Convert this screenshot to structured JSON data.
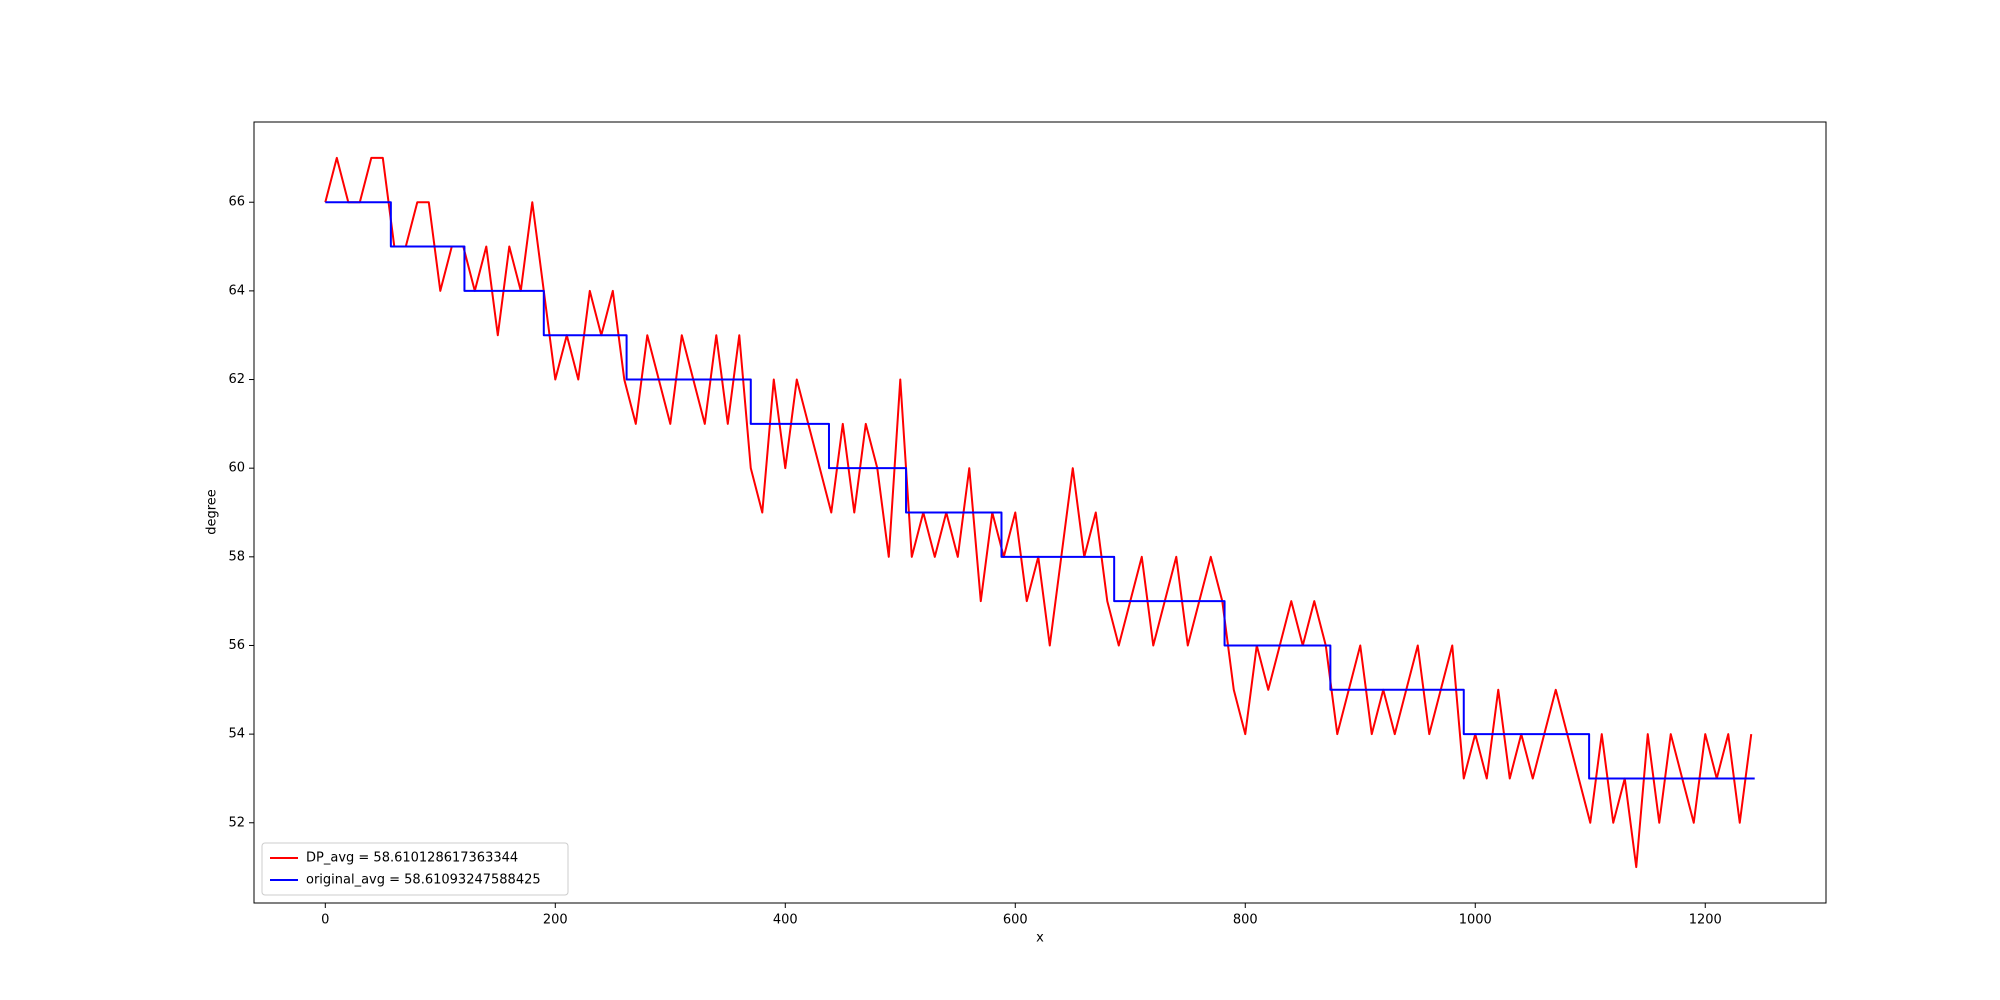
{
  "chart_data": {
    "type": "line",
    "xlabel": "x",
    "ylabel": "degree",
    "xlim": [
      -62,
      1305
    ],
    "ylim": [
      50.19,
      67.81
    ],
    "xticks": [
      0,
      200,
      400,
      600,
      800,
      1000,
      1200
    ],
    "yticks": [
      52,
      54,
      56,
      58,
      60,
      62,
      64,
      66
    ],
    "grid": false,
    "legend": "lower left",
    "series": [
      {
        "name": "DP_avg = 58.610128617363344",
        "color": "#ff0000",
        "x": [
          0,
          10,
          20,
          30,
          40,
          50,
          60,
          70,
          80,
          90,
          100,
          110,
          120,
          130,
          140,
          150,
          160,
          170,
          180,
          190,
          200,
          210,
          220,
          230,
          240,
          250,
          260,
          270,
          280,
          290,
          300,
          310,
          320,
          330,
          340,
          350,
          360,
          370,
          380,
          390,
          400,
          410,
          420,
          430,
          440,
          450,
          460,
          470,
          480,
          490,
          500,
          510,
          520,
          530,
          540,
          550,
          560,
          570,
          580,
          590,
          600,
          610,
          620,
          630,
          640,
          650,
          660,
          670,
          680,
          690,
          700,
          710,
          720,
          730,
          740,
          750,
          760,
          770,
          780,
          790,
          800,
          810,
          820,
          830,
          840,
          850,
          860,
          870,
          880,
          890,
          900,
          910,
          920,
          930,
          940,
          950,
          960,
          970,
          980,
          990,
          1000,
          1010,
          1020,
          1030,
          1040,
          1050,
          1060,
          1070,
          1080,
          1090,
          1100,
          1110,
          1120,
          1130,
          1140,
          1150,
          1160,
          1170,
          1180,
          1190,
          1200,
          1210,
          1220,
          1230,
          1240
        ],
        "values": [
          66,
          67,
          66,
          66,
          67,
          67,
          65,
          65,
          66,
          66,
          64,
          65,
          65,
          64,
          65,
          63,
          65,
          64,
          66,
          64,
          62,
          63,
          62,
          64,
          63,
          64,
          62,
          61,
          63,
          62,
          61,
          63,
          62,
          61,
          63,
          61,
          63,
          60,
          59,
          62,
          60,
          62,
          61,
          60,
          59,
          61,
          59,
          61,
          60,
          58,
          62,
          58,
          59,
          58,
          59,
          58,
          60,
          57,
          59,
          58,
          59,
          57,
          58,
          56,
          58,
          60,
          58,
          59,
          57,
          56,
          57,
          58,
          56,
          57,
          58,
          56,
          57,
          58,
          57,
          55,
          54,
          56,
          55,
          56,
          57,
          56,
          57,
          56,
          54,
          55,
          56,
          54,
          55,
          54,
          55,
          56,
          54,
          55,
          56,
          53,
          54,
          53,
          55,
          53,
          54,
          53,
          54,
          55,
          54,
          53,
          52,
          54,
          52,
          53,
          51,
          54,
          52,
          54,
          53,
          52,
          54,
          53,
          54,
          52,
          54
        ]
      },
      {
        "name": "original_avg = 58.61093247588425",
        "color": "#0000ff",
        "x": [
          0,
          57,
          57,
          121,
          121,
          190,
          190,
          262,
          262,
          370,
          370,
          438,
          438,
          505,
          505,
          588,
          588,
          686,
          686,
          782,
          782,
          874,
          874,
          990,
          990,
          1099,
          1099,
          1243
        ],
        "values": [
          66,
          66,
          65,
          65,
          64,
          64,
          63,
          63,
          62,
          62,
          61,
          61,
          60,
          60,
          59,
          59,
          58,
          58,
          57,
          57,
          56,
          56,
          55,
          55,
          54,
          54,
          53,
          53
        ]
      }
    ]
  }
}
